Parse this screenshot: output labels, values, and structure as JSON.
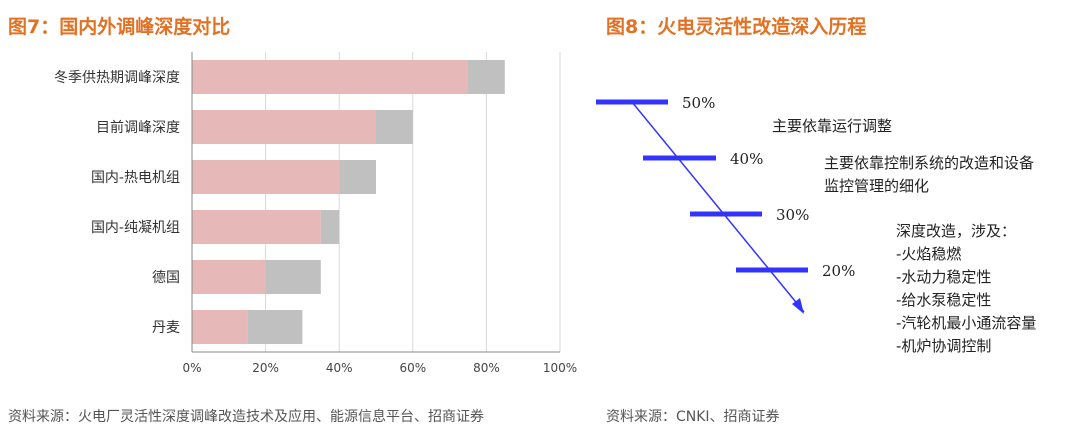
{
  "left_figure": {
    "title": "图7：国内外调峰深度对比",
    "source": "资料来源：火电厂灵活性深度调峰改造技术及应用、能源信息平台、招商证券"
  },
  "right_figure": {
    "title": "图8：火电灵活性改造深入历程",
    "source": "资料来源：CNKI、招商证券"
  },
  "chart_data": [
    {
      "type": "bar",
      "orientation": "horizontal",
      "stacked": true,
      "categories": [
        "冬季供热期调峰深度",
        "目前调峰深度",
        "国内-热电机组",
        "国内-纯凝机组",
        "德国",
        "丹麦"
      ],
      "series": [
        {
          "values": [
            75,
            50,
            40,
            35,
            20,
            15
          ],
          "color": "#e6b8b7"
        },
        {
          "values": [
            10,
            10,
            10,
            5,
            15,
            15
          ],
          "color": "#c0c0c0"
        }
      ],
      "xlim": [
        0,
        100
      ],
      "x_ticks": [
        "0%",
        "20%",
        "40%",
        "60%",
        "80%",
        "100%"
      ],
      "grid": true
    },
    {
      "type": "diagram",
      "stages": [
        {
          "label": "50%",
          "notes": [
            "主要依靠运行调整"
          ]
        },
        {
          "label": "40%",
          "notes": [
            "主要依靠控制系统的改造和设备",
            "监控管理的细化"
          ]
        },
        {
          "label": "30%",
          "notes": [
            "深度改造，涉及：",
            "-火焰稳燃",
            "-水动力稳定性",
            "-给水泵稳定性",
            "-汽轮机最小通流容量",
            "-机炉协调控制"
          ]
        },
        {
          "label": "20%",
          "notes": []
        }
      ],
      "line_color": "#3333ff"
    }
  ]
}
